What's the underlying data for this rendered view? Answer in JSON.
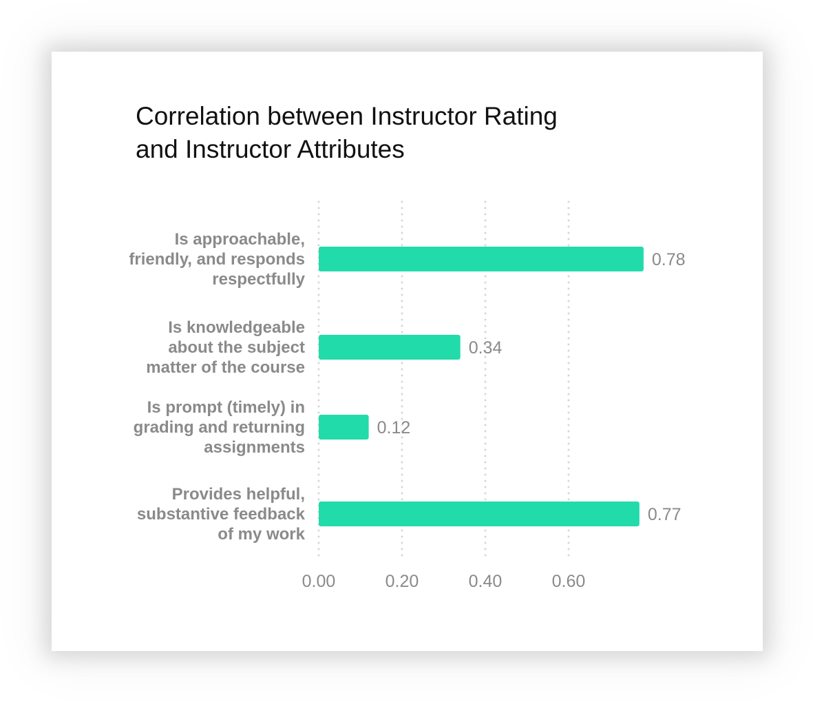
{
  "chart_data": {
    "type": "bar",
    "orientation": "horizontal",
    "title_lines": [
      "Correlation between Instructor Rating",
      "and Instructor Attributes"
    ],
    "categories": [
      [
        "Is approachable,",
        "friendly, and responds",
        "respectfully"
      ],
      [
        "Is knowledgeable",
        "about the subject",
        "matter of the course"
      ],
      [
        "Is prompt (timely) in",
        "grading and returning",
        "assignments"
      ],
      [
        "Provides helpful,",
        "substantive feedback",
        "of my work"
      ]
    ],
    "values": [
      0.78,
      0.34,
      0.12,
      0.77
    ],
    "value_labels": [
      "0.78",
      "0.34",
      "0.12",
      "0.77"
    ],
    "x_ticks": [
      0,
      0.2,
      0.4,
      0.6
    ],
    "x_tick_labels": [
      "0.00",
      "0.20",
      "0.40",
      "0.60"
    ],
    "xlim": [
      0,
      0.78
    ],
    "grid": true,
    "legend": false,
    "bar_color": "#22dbaa",
    "text_color": "#8a8a8a"
  }
}
